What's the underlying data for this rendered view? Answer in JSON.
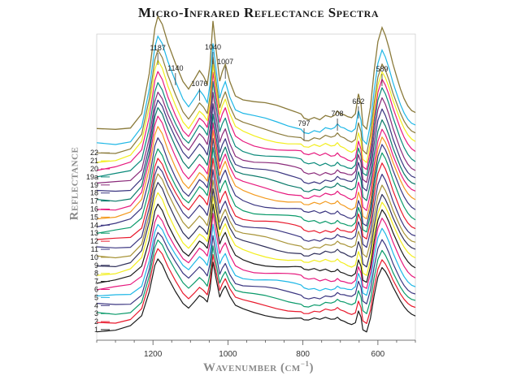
{
  "chart_data": {
    "type": "line",
    "title": "Micro-Infrared Reflectance Spectra",
    "xlabel": "Wavenumber",
    "xlabel_unit": "(cm",
    "xlabel_unit_sup": "−1",
    "xlabel_unit_close": ")",
    "ylabel": "Reflectance",
    "xlim": [
      1350,
      500
    ],
    "x_reversed": true,
    "xticks": [
      1200,
      1000,
      800,
      600
    ],
    "xtick_labels": [
      "1200",
      "1000",
      "800",
      "600"
    ],
    "grid": false,
    "legend": "left, labels beside each curve",
    "peak_labels": [
      {
        "text": "1187",
        "x": 1187
      },
      {
        "text": "1140",
        "x": 1140
      },
      {
        "text": "1076",
        "x": 1076
      },
      {
        "text": "1040",
        "x": 1040
      },
      {
        "text": "1007",
        "x": 1007
      },
      {
        "text": "797",
        "x": 797
      },
      {
        "text": "708",
        "x": 708
      },
      {
        "text": "652",
        "x": 652
      },
      {
        "text": "589",
        "x": 589
      }
    ],
    "series": [
      {
        "name": "1",
        "color": "#1a1a1a"
      },
      {
        "name": "2",
        "color": "#e8192c"
      },
      {
        "name": "3",
        "color": "#0a9a6a"
      },
      {
        "name": "4",
        "color": "#3a3580"
      },
      {
        "name": "5",
        "color": "#1eb7e6"
      },
      {
        "name": "6",
        "color": "#e6197e"
      },
      {
        "name": "7",
        "color": "#1a1a1a"
      },
      {
        "name": "8",
        "color": "#f2ee1e"
      },
      {
        "name": "9",
        "color": "#2f2f5a"
      },
      {
        "name": "10",
        "color": "#a89438"
      },
      {
        "name": "11",
        "color": "#3a3580"
      },
      {
        "name": "12",
        "color": "#e8192c"
      },
      {
        "name": "13",
        "color": "#0a9a6a"
      },
      {
        "name": "14",
        "color": "#3a3580"
      },
      {
        "name": "15",
        "color": "#f39a1e"
      },
      {
        "name": "16",
        "color": "#e6197e"
      },
      {
        "name": "17",
        "color": "#0a7a6a"
      },
      {
        "name": "18",
        "color": "#3a3580"
      },
      {
        "name": "19",
        "color": "#8a2a7a"
      },
      {
        "name": "19a",
        "color": "#0a8a7a"
      },
      {
        "name": "20",
        "color": "#e6197e"
      },
      {
        "name": "21",
        "color": "#f2ee1e"
      },
      {
        "name": "22",
        "color": "#8a7a3a"
      }
    ],
    "top_series": {
      "name": "",
      "color": "#8a7a3a"
    },
    "cyan_series": {
      "name": "",
      "color": "#1eb7e6"
    },
    "base_spectrum": {
      "x": [
        1350,
        1300,
        1260,
        1230,
        1210,
        1195,
        1187,
        1175,
        1160,
        1140,
        1120,
        1105,
        1090,
        1076,
        1065,
        1055,
        1048,
        1040,
        1032,
        1022,
        1015,
        1007,
        995,
        980,
        960,
        930,
        900,
        870,
        840,
        820,
        805,
        797,
        785,
        770,
        755,
        740,
        725,
        715,
        708,
        700,
        690,
        680,
        670,
        660,
        652,
        645,
        640,
        630,
        620,
        610,
        600,
        589,
        580,
        570,
        560,
        550,
        540,
        530,
        520,
        510,
        500
      ],
      "y": [
        0.02,
        0.03,
        0.06,
        0.18,
        0.5,
        0.86,
        0.95,
        0.88,
        0.72,
        0.55,
        0.4,
        0.34,
        0.42,
        0.5,
        0.46,
        0.4,
        0.56,
        0.92,
        0.7,
        0.44,
        0.52,
        0.58,
        0.44,
        0.32,
        0.28,
        0.25,
        0.23,
        0.21,
        0.19,
        0.18,
        0.17,
        0.14,
        0.13,
        0.15,
        0.13,
        0.16,
        0.14,
        0.15,
        0.18,
        0.15,
        0.14,
        0.12,
        0.11,
        0.14,
        0.3,
        0.22,
        0.05,
        0.02,
        0.2,
        0.5,
        0.74,
        0.86,
        0.8,
        0.7,
        0.58,
        0.48,
        0.38,
        0.3,
        0.24,
        0.2,
        0.18
      ]
    }
  }
}
